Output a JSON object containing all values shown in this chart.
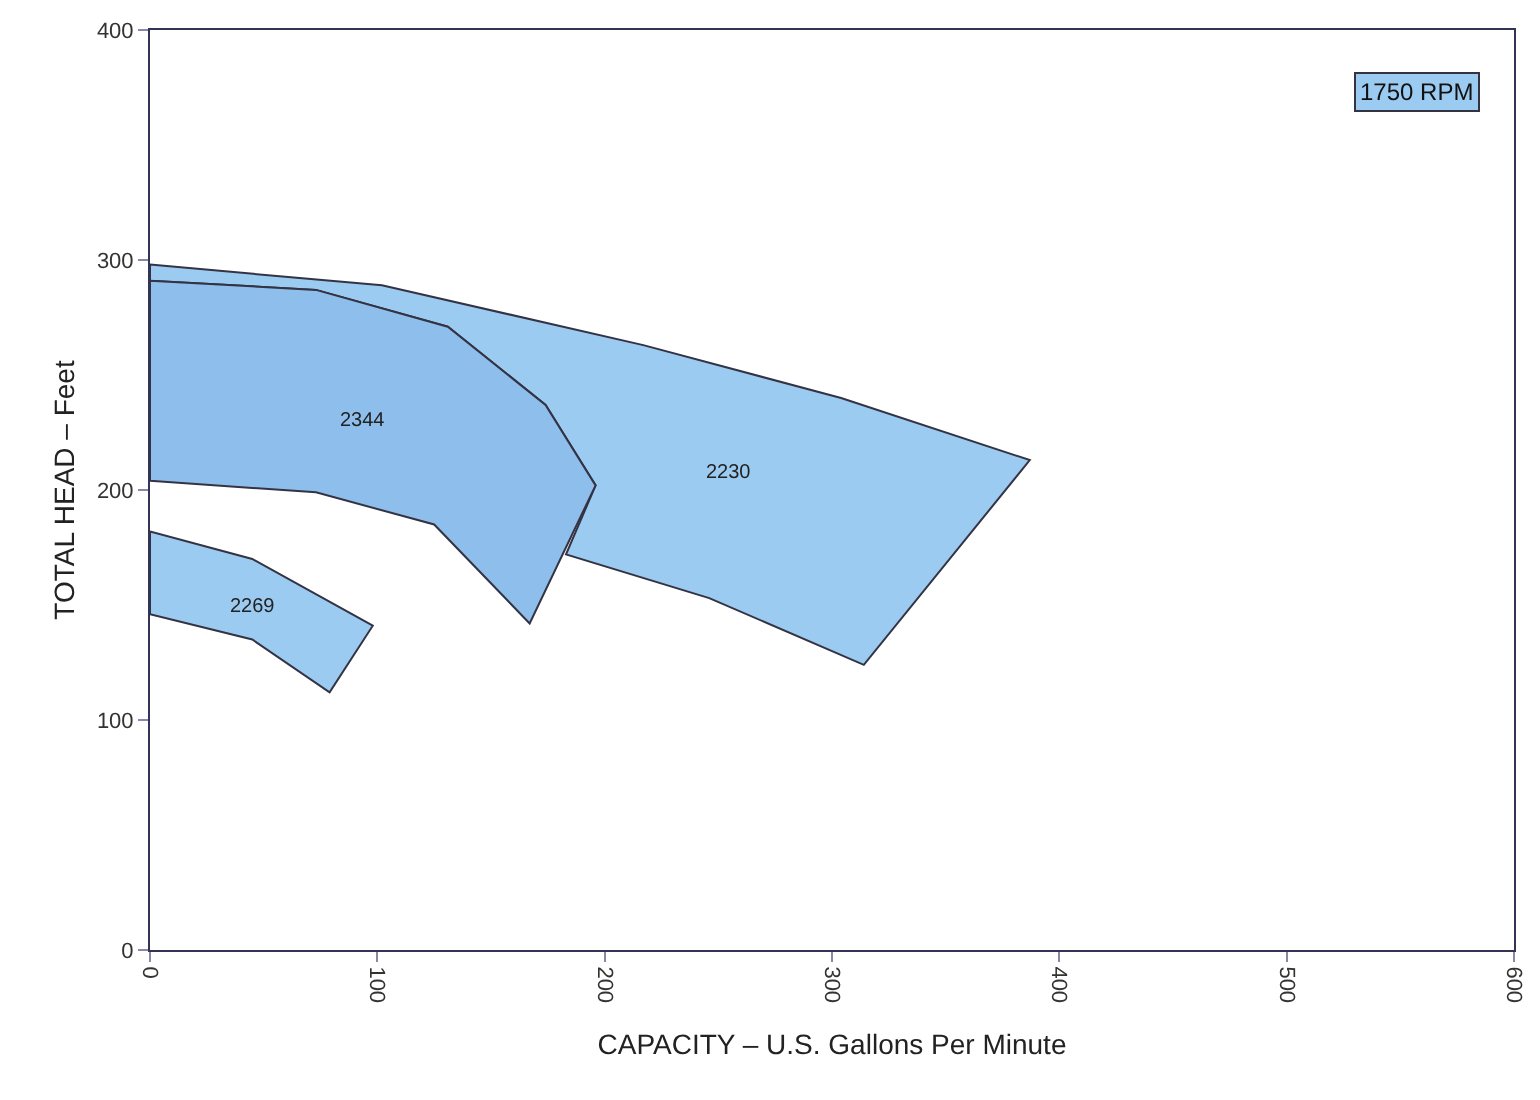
{
  "chart_data": {
    "type": "area",
    "xlabel": "CAPACITY – U.S. Gallons Per Minute",
    "ylabel": "TOTAL HEAD – Feet",
    "xlim": [
      0,
      600
    ],
    "xticks": [
      0,
      100,
      200,
      300,
      400,
      500,
      600
    ],
    "ylim": [
      0,
      400
    ],
    "yticks": [
      0,
      100,
      200,
      300,
      400
    ],
    "grid": false,
    "series": [
      {
        "name": "2230",
        "color": "#9ccbf2",
        "x": [
          0,
          102,
          217,
          304,
          387,
          314,
          246,
          183,
          196,
          174,
          131,
          73,
          0,
          0
        ],
        "values": [
          298,
          289,
          263,
          240,
          213,
          124,
          153,
          172,
          202,
          237,
          271,
          287,
          291,
          298
        ]
      },
      {
        "name": "2344",
        "color": "#8ebfec",
        "x": [
          0,
          73,
          131,
          174,
          196,
          167,
          125,
          73,
          0,
          0
        ],
        "values": [
          291,
          287,
          271,
          237,
          202,
          142,
          185,
          199,
          204,
          291
        ]
      },
      {
        "name": "2269",
        "color": "#9ccbf2",
        "x": [
          0,
          45,
          98,
          79,
          45,
          0,
          0
        ],
        "values": [
          182,
          170,
          141,
          112,
          135,
          146,
          182
        ]
      }
    ],
    "annotations": [
      "1750 RPM"
    ]
  }
}
